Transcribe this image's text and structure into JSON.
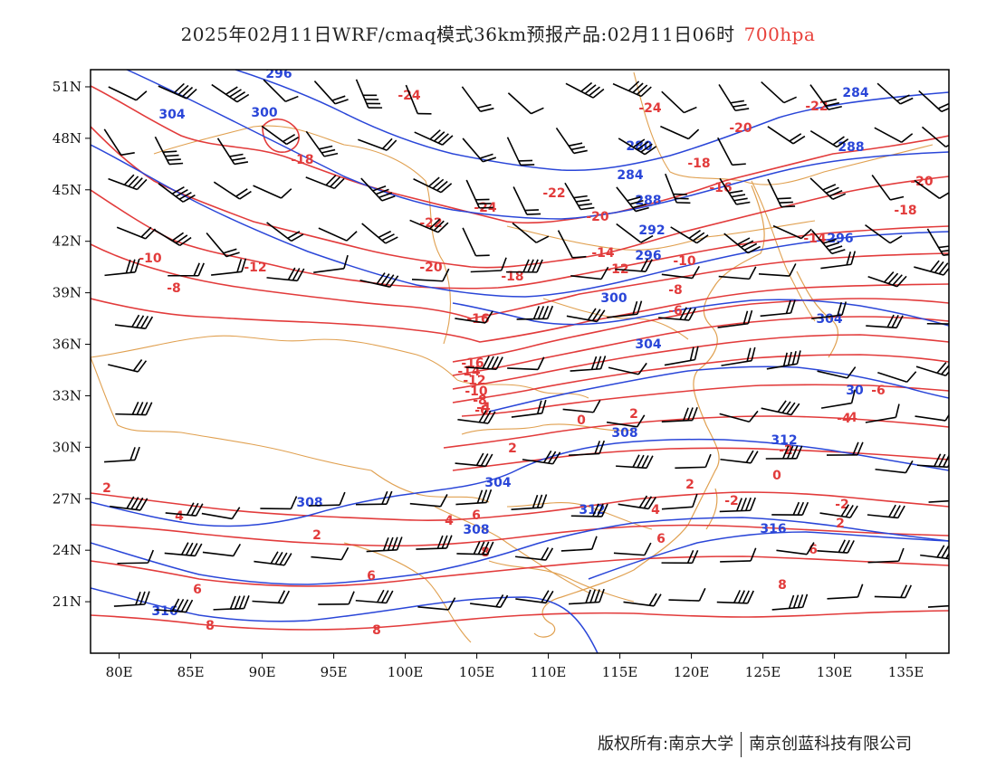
{
  "title": {
    "main": "2025年02月11日WRF/cmaq模式36km预报产品:02月11日06时",
    "level": "700hpa",
    "level_color": "#e8403a"
  },
  "map": {
    "lon_range": [
      78,
      138
    ],
    "lat_range": [
      18,
      52
    ],
    "x_ticks": [
      "80E",
      "85E",
      "90E",
      "95E",
      "100E",
      "105E",
      "110E",
      "115E",
      "120E",
      "125E",
      "130E",
      "135E"
    ],
    "y_ticks": [
      "51N",
      "48N",
      "45N",
      "42N",
      "39N",
      "36N",
      "33N",
      "30N",
      "27N",
      "24N",
      "21N"
    ],
    "colors": {
      "temperature": "#e23b3b",
      "height": "#2a46d8",
      "border": "#e0a050",
      "wind": "#000000"
    }
  },
  "temperature_labels": [
    "-24",
    "-24",
    "-22",
    "-24",
    "-20",
    "-18",
    "-22",
    "-20",
    "-16",
    "-22",
    "-18",
    "-20",
    "-16",
    "-14",
    "-12",
    "-12",
    "-10",
    "-10",
    "-8",
    "-18",
    "-16",
    "-14",
    "-12",
    "-10",
    "-8",
    "-6",
    "-4",
    "-8",
    "-6",
    "-14",
    "-6",
    "-4",
    "0",
    "2",
    "-2",
    "2",
    "0",
    "-2",
    "2",
    "-2",
    "4",
    "4",
    "6",
    "8",
    "4",
    "2",
    "6",
    "2",
    "6",
    "8",
    "8",
    "8",
    "6",
    "2",
    "6",
    "-20",
    "-18",
    "4"
  ],
  "height_labels": [
    "296",
    "300",
    "304",
    "284",
    "280",
    "284",
    "288",
    "288",
    "292",
    "296",
    "300",
    "304",
    "304",
    "296",
    "308",
    "304",
    "308",
    "312",
    "308",
    "312",
    "316",
    "316",
    "30"
  ],
  "footer": {
    "owner": "版权所有:南京大学",
    "company": "南京创蓝科技有限公司"
  }
}
